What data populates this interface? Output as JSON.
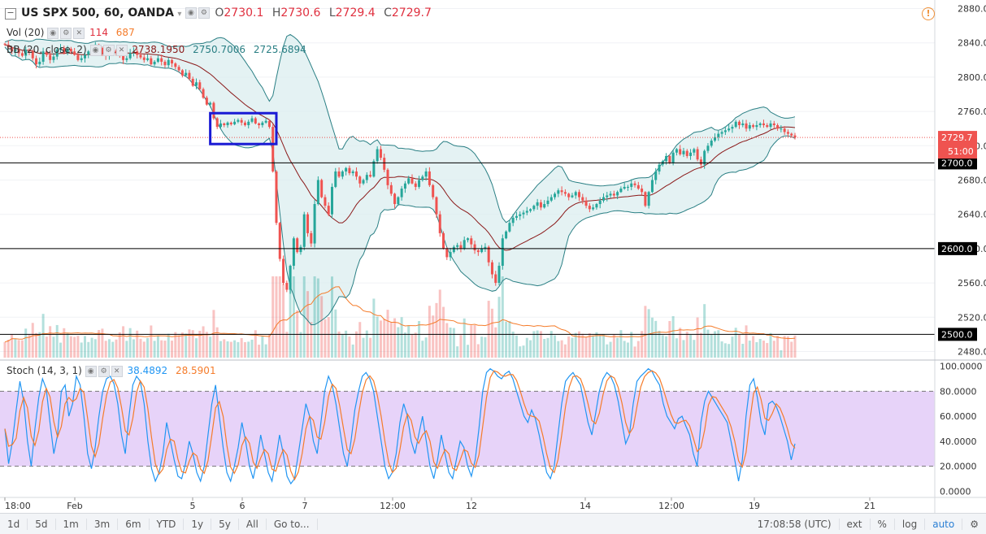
{
  "header": {
    "symbol": "US SPX 500, 60, OANDA",
    "ohlc": [
      {
        "label": "O",
        "value": "2730.1"
      },
      {
        "label": "H",
        "value": "2730.6"
      },
      {
        "label": "L",
        "value": "2729.4"
      },
      {
        "label": "C",
        "value": "2729.7"
      }
    ],
    "volume": {
      "label": "Vol (20)",
      "value1": "114",
      "value2": "687"
    },
    "bb": {
      "label": "BB (20, close, 2)",
      "v1": "2738.1950",
      "v2": "2750.7006",
      "v3": "2725.6894"
    },
    "stoch": {
      "label": "Stoch (14, 3, 1)",
      "k": "38.4892",
      "d": "28.5901"
    }
  },
  "colors": {
    "up": "#26a69a",
    "down": "#ef5350",
    "basis": "#8b1a1a",
    "band": "#2a7f84",
    "band_fill": "#d8ecee",
    "k": "#2196f3",
    "d": "#f57c2b",
    "stoch_fill": "#e1c8f7",
    "highlight": "#1a1ad4"
  },
  "price_axis": {
    "ticks": [
      "2880.0",
      "2840.0",
      "2800.0",
      "2760.0",
      "2720.0",
      "2680.0",
      "2640.0",
      "2600.0",
      "2560.0",
      "2520.0",
      "2480.0"
    ],
    "current_label": "2729.7",
    "timer_label": "51:00"
  },
  "horizontal_lines": [
    {
      "label": "2700.0"
    },
    {
      "label": "2600.0"
    },
    {
      "label": "2500.0"
    }
  ],
  "stoch_axis": {
    "ticks": [
      "100.0000",
      "80.0000",
      "60.0000",
      "40.0000",
      "20.0000",
      "0.0000"
    ]
  },
  "time_axis": {
    "ticks": [
      "18:00",
      "Feb",
      "5",
      "6",
      "7",
      "12:00",
      "12",
      "14",
      "12:00",
      "19",
      "21"
    ]
  },
  "bottom_bar": {
    "ranges": [
      "1d",
      "5d",
      "1m",
      "3m",
      "6m",
      "YTD",
      "1y",
      "5y",
      "All"
    ],
    "goto": "Go to...",
    "clock": "17:08:58 (UTC)",
    "options": [
      "ext",
      "%",
      "log",
      "auto"
    ]
  },
  "chart_data": {
    "type": "candlestick",
    "panes": [
      "price",
      "volume",
      "stochastic"
    ],
    "price_range": [
      2470,
      2890
    ],
    "stoch_range": [
      -5,
      103
    ],
    "volume_range": [
      0,
      1000
    ],
    "x_labels": [
      "18:00",
      "Feb",
      "5",
      "6",
      "7",
      "12:00",
      "12",
      "14",
      "12:00",
      "19",
      "21"
    ],
    "closes": [
      2838,
      2835,
      2830,
      2832,
      2828,
      2825,
      2832,
      2830,
      2822,
      2815,
      2818,
      2830,
      2826,
      2820,
      2824,
      2832,
      2834,
      2828,
      2833,
      2830,
      2826,
      2820,
      2822,
      2826,
      2830,
      2835,
      2838,
      2834,
      2828,
      2825,
      2828,
      2831,
      2829,
      2826,
      2820,
      2822,
      2828,
      2830,
      2826,
      2823,
      2820,
      2822,
      2815,
      2818,
      2822,
      2818,
      2814,
      2820,
      2816,
      2812,
      2808,
      2802,
      2805,
      2798,
      2790,
      2794,
      2786,
      2776,
      2768,
      2770,
      2752,
      2742,
      2746,
      2744,
      2747,
      2745,
      2748,
      2750,
      2747,
      2744,
      2748,
      2752,
      2746,
      2744,
      2747,
      2749,
      2742,
      2690,
      2630,
      2588,
      2560,
      2552,
      2580,
      2612,
      2596,
      2602,
      2640,
      2618,
      2606,
      2652,
      2680,
      2660,
      2650,
      2640,
      2672,
      2690,
      2684,
      2690,
      2694,
      2688,
      2690,
      2684,
      2676,
      2680,
      2686,
      2684,
      2702,
      2716,
      2706,
      2692,
      2674,
      2664,
      2652,
      2660,
      2670,
      2676,
      2682,
      2676,
      2672,
      2680,
      2684,
      2690,
      2674,
      2660,
      2640,
      2618,
      2600,
      2590,
      2596,
      2602,
      2604,
      2600,
      2610,
      2612,
      2605,
      2598,
      2596,
      2600,
      2602,
      2584,
      2570,
      2560,
      2580,
      2612,
      2620,
      2630,
      2636,
      2638,
      2640,
      2642,
      2644,
      2646,
      2650,
      2654,
      2648,
      2652,
      2656,
      2660,
      2664,
      2668,
      2666,
      2664,
      2660,
      2662,
      2666,
      2660,
      2656,
      2650,
      2646,
      2648,
      2652,
      2656,
      2660,
      2662,
      2664,
      2662,
      2666,
      2670,
      2672,
      2672,
      2676,
      2674,
      2670,
      2666,
      2650,
      2666,
      2680,
      2690,
      2698,
      2702,
      2708,
      2700,
      2712,
      2716,
      2710,
      2714,
      2708,
      2712,
      2716,
      2704,
      2698,
      2714,
      2720,
      2726,
      2730,
      2734,
      2736,
      2738,
      2740,
      2742,
      2748,
      2744,
      2746,
      2740,
      2744,
      2742,
      2744,
      2746,
      2744,
      2742,
      2746,
      2744,
      2740,
      2740,
      2736,
      2734,
      2732,
      2729.7
    ],
    "stoch_k": [
      50,
      22,
      40,
      65,
      88,
      72,
      40,
      20,
      50,
      75,
      90,
      82,
      55,
      30,
      45,
      80,
      85,
      60,
      70,
      92,
      85,
      60,
      30,
      18,
      35,
      60,
      80,
      90,
      92,
      86,
      70,
      45,
      30,
      60,
      85,
      92,
      88,
      70,
      40,
      18,
      8,
      15,
      30,
      55,
      40,
      25,
      12,
      10,
      22,
      40,
      30,
      15,
      8,
      20,
      45,
      70,
      85,
      60,
      35,
      15,
      8,
      20,
      35,
      55,
      40,
      20,
      10,
      25,
      45,
      30,
      15,
      8,
      25,
      45,
      30,
      12,
      6,
      10,
      30,
      50,
      70,
      60,
      40,
      30,
      55,
      80,
      92,
      85,
      70,
      50,
      30,
      20,
      40,
      65,
      80,
      92,
      95,
      90,
      80,
      60,
      40,
      20,
      10,
      15,
      30,
      55,
      70,
      60,
      40,
      30,
      45,
      60,
      40,
      20,
      10,
      25,
      45,
      30,
      15,
      10,
      25,
      40,
      35,
      20,
      12,
      25,
      50,
      80,
      95,
      98,
      96,
      92,
      90,
      94,
      96,
      90,
      80,
      70,
      60,
      55,
      65,
      58,
      45,
      30,
      15,
      10,
      20,
      45,
      70,
      88,
      92,
      95,
      90,
      85,
      70,
      55,
      45,
      62,
      80,
      90,
      95,
      92,
      85,
      72,
      55,
      38,
      45,
      70,
      88,
      92,
      95,
      98,
      96,
      90,
      85,
      70,
      60,
      55,
      50,
      58,
      60,
      52,
      45,
      30,
      20,
      55,
      72,
      80,
      75,
      70,
      65,
      60,
      55,
      40,
      25,
      8,
      25,
      60,
      85,
      90,
      75,
      55,
      45,
      70,
      72,
      68,
      60,
      50,
      40,
      25,
      38
    ]
  }
}
